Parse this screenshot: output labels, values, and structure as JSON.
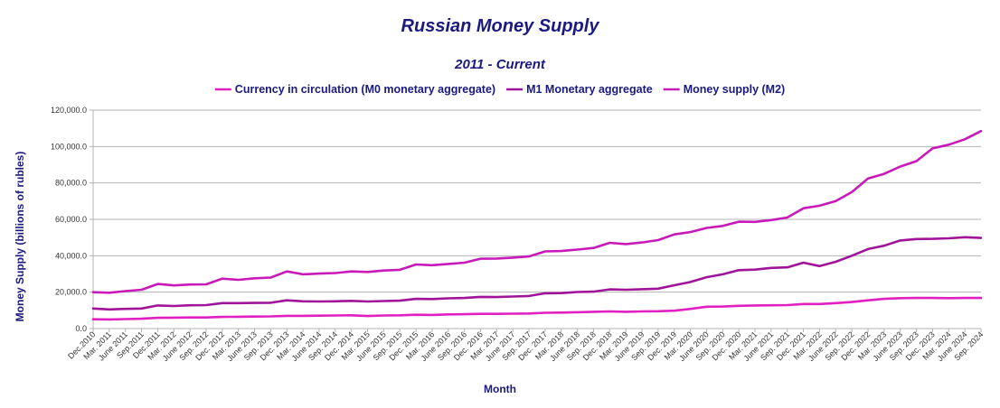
{
  "chart_data": {
    "type": "line",
    "title": "Russian Money Supply",
    "subtitle": "2011 - Current",
    "xlabel": "Month",
    "ylabel": "Money Supply (billions of rubles)",
    "ylim": [
      0,
      120000
    ],
    "y_ticks": [
      "0.0",
      "20,000.0",
      "40,000.0",
      "60,000.0",
      "80,000.0",
      "100,000.0",
      "120,000.0"
    ],
    "grid": true,
    "legend_position": "top",
    "x_tick_labels": [
      "Dec.2010",
      "Mar. 2011",
      "June 2011",
      "Sep.2011",
      "Dec.2011",
      "Mar. 2012",
      "June 2012",
      "Sep. 2012",
      "Dec. 2012",
      "Mar. 2013",
      "June 2013",
      "Sep. 2013",
      "Dec. 2013",
      "Mar. 2014",
      "June 2014",
      "Sep. 2014",
      "Dec. 2014",
      "Mar. 2015",
      "June 2015",
      "Sep. 2015",
      "Dec. 2015",
      "Mar. 2016",
      "June 2016",
      "Sep. 2016",
      "Dec. 2016",
      "Mar. 2017",
      "June 2017",
      "Sep. 2017",
      "Dec. 2017",
      "Mar. 2018",
      "June 2018",
      "Sep. 2018",
      "Dec. 2018",
      "Mar. 2019",
      "June 2019",
      "Sep. 2019",
      "Dec. 2019",
      "Mar. 2020",
      "June 2020",
      "Sep. 2020",
      "Dec. 2020",
      "Mar. 2021",
      "June 2021",
      "Sep. 2021",
      "Dec. 2021",
      "Mar. 2022",
      "June 2022",
      "Sep. 2022",
      "Dec. 2022",
      "Mar. 2023",
      "June 2023",
      "Sep. 2023",
      "Dec. 2023",
      "Mar. 2024",
      "June 2024",
      "Sep. 2024"
    ],
    "series": [
      {
        "name": "Currency in circulation (M0 monetary aggregate)",
        "color": "#e020c0",
        "values": [
          5100,
          5000,
          5200,
          5400,
          5900,
          6000,
          6100,
          6100,
          6400,
          6500,
          6600,
          6700,
          7000,
          7000,
          7100,
          7200,
          7300,
          6900,
          7200,
          7300,
          7600,
          7500,
          7800,
          7900,
          8100,
          8100,
          8200,
          8300,
          8700,
          8800,
          9000,
          9200,
          9400,
          9200,
          9400,
          9500,
          9800,
          10800,
          12000,
          12100,
          12500,
          12700,
          12800,
          12900,
          13500,
          13500,
          14000,
          14600,
          15500,
          16300,
          16700,
          16800,
          16800,
          16700,
          16800,
          16800
        ]
      },
      {
        "name": "M1 Monetary aggregate",
        "color": "#a0149a",
        "values": [
          11000,
          10500,
          10800,
          11000,
          12700,
          12400,
          12800,
          12900,
          14000,
          14000,
          14100,
          14200,
          15500,
          15000,
          14900,
          15000,
          15200,
          14900,
          15100,
          15300,
          16300,
          16200,
          16600,
          16800,
          17400,
          17300,
          17600,
          17900,
          19400,
          19500,
          20100,
          20300,
          21500,
          21300,
          21600,
          21900,
          23800,
          25600,
          28200,
          29800,
          32100,
          32400,
          33300,
          33600,
          36200,
          34300,
          36700,
          40000,
          43700,
          45500,
          48400,
          49200,
          49300,
          49600,
          50200,
          49800
        ]
      },
      {
        "name": "Money supply (M2)",
        "color": "#c81ab8",
        "values": [
          20000,
          19700,
          20600,
          21300,
          24500,
          23700,
          24200,
          24300,
          27400,
          26800,
          27600,
          28000,
          31400,
          29800,
          30200,
          30500,
          31400,
          31100,
          31900,
          32300,
          35200,
          34800,
          35500,
          36200,
          38400,
          38500,
          39000,
          39600,
          42400,
          42600,
          43400,
          44300,
          47100,
          46400,
          47300,
          48600,
          51700,
          53000,
          55300,
          56400,
          58700,
          58600,
          59600,
          61000,
          66100,
          67500,
          70000,
          75000,
          82400,
          85000,
          89000,
          92000,
          99000,
          101000,
          104000,
          108500
        ]
      }
    ]
  }
}
